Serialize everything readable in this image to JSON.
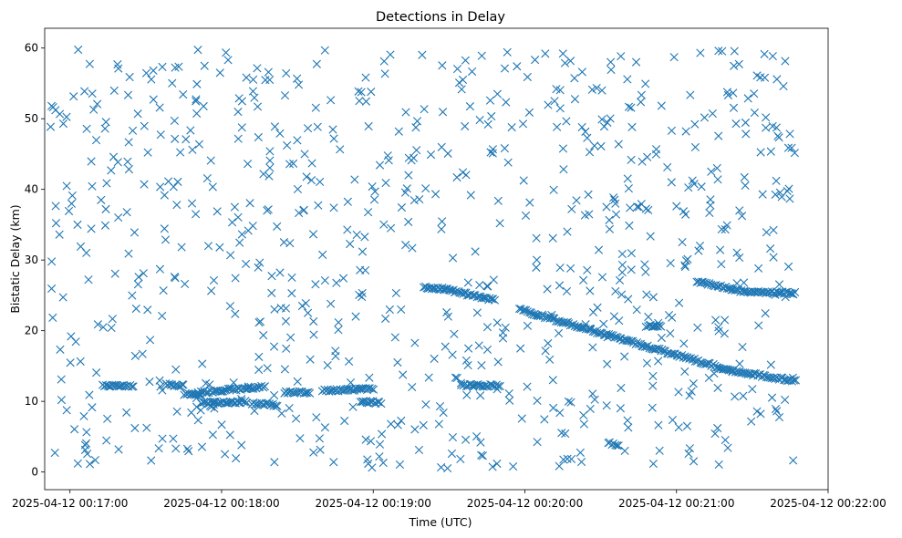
{
  "chart_data": {
    "type": "scatter",
    "title": "Detections in Delay",
    "xlabel": "Time (UTC)",
    "ylabel": "Bistatic Delay (km)",
    "marker": "x",
    "color": "#1f77b4",
    "grid": false,
    "xlim": [
      "2025-04-12 00:16:50",
      "2025-04-12 00:22:00"
    ],
    "ylim": [
      -2.5,
      62.8
    ],
    "x_ticks": [
      "2025-04-12 00:17:00",
      "2025-04-12 00:18:00",
      "2025-04-12 00:19:00",
      "2025-04-12 00:20:00",
      "2025-04-12 00:21:00",
      "2025-04-12 00:22:00"
    ],
    "y_ticks": [
      0,
      10,
      20,
      30,
      40,
      50,
      60
    ],
    "y_tick_labels": [
      "0",
      "10",
      "20",
      "30",
      "40",
      "50",
      "60"
    ],
    "x_range_of_detections": [
      "2025-04-12 00:16:52",
      "2025-04-12 00:21:47"
    ],
    "tracks": [
      {
        "x_start": "2025-04-12 00:17:13",
        "x_end": "2025-04-12 00:17:25",
        "y_start": 12.2,
        "y_end": 12.1
      },
      {
        "x_start": "2025-04-12 00:17:38",
        "x_end": "2025-04-12 00:17:45",
        "y_start": 12.4,
        "y_end": 12.2
      },
      {
        "x_start": "2025-04-12 00:17:45",
        "x_end": "2025-04-12 00:17:52",
        "y_start": 11.0,
        "y_end": 11.0
      },
      {
        "x_start": "2025-04-12 00:17:50",
        "x_end": "2025-04-12 00:18:17",
        "y_start": 11.2,
        "y_end": 12.1
      },
      {
        "x_start": "2025-04-12 00:17:52",
        "x_end": "2025-04-12 00:18:10",
        "y_start": 9.8,
        "y_end": 9.9
      },
      {
        "x_start": "2025-04-12 00:18:12",
        "x_end": "2025-04-12 00:18:22",
        "y_start": 9.7,
        "y_end": 9.5
      },
      {
        "x_start": "2025-04-12 00:18:25",
        "x_end": "2025-04-12 00:18:35",
        "y_start": 11.3,
        "y_end": 11.3
      },
      {
        "x_start": "2025-04-12 00:18:40",
        "x_end": "2025-04-12 00:19:00",
        "y_start": 11.5,
        "y_end": 11.8
      },
      {
        "x_start": "2025-04-12 00:18:55",
        "x_end": "2025-04-12 00:19:03",
        "y_start": 10.0,
        "y_end": 9.8
      },
      {
        "x_start": "2025-04-12 00:19:20",
        "x_end": "2025-04-12 00:19:28",
        "y_start": 26.2,
        "y_end": 25.9
      },
      {
        "x_start": "2025-04-12 00:19:28",
        "x_end": "2025-04-12 00:19:48",
        "y_start": 25.9,
        "y_end": 24.3
      },
      {
        "x_start": "2025-04-12 00:19:35",
        "x_end": "2025-04-12 00:19:50",
        "y_start": 12.3,
        "y_end": 12.2
      },
      {
        "x_start": "2025-04-12 00:19:58",
        "x_end": "2025-04-12 00:21:22",
        "y_start": 23.0,
        "y_end": 14.3
      },
      {
        "x_start": "2025-04-12 00:21:22",
        "x_end": "2025-04-12 00:21:47",
        "y_start": 14.3,
        "y_end": 12.9
      },
      {
        "x_start": "2025-04-12 00:20:48",
        "x_end": "2025-04-12 00:20:54",
        "y_start": 20.7,
        "y_end": 20.6
      },
      {
        "x_start": "2025-04-12 00:21:08",
        "x_end": "2025-04-12 00:21:27",
        "y_start": 27.0,
        "y_end": 25.5
      },
      {
        "x_start": "2025-04-12 00:21:27",
        "x_end": "2025-04-12 00:21:47",
        "y_start": 25.5,
        "y_end": 25.3
      },
      {
        "x_start": "2025-04-12 00:20:33",
        "x_end": "2025-04-12 00:20:37",
        "y_start": 4.2,
        "y_end": 3.6
      }
    ],
    "clutter": {
      "x_start": "2025-04-12 00:16:52",
      "x_end": "2025-04-12 00:21:47",
      "y_range": [
        0.5,
        60.0
      ],
      "approx_count": 800
    }
  }
}
